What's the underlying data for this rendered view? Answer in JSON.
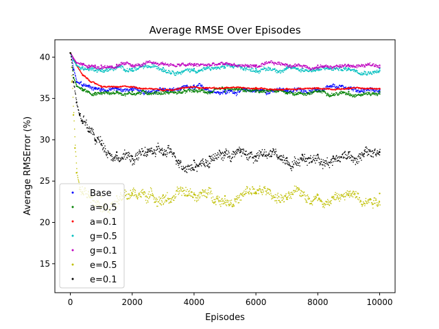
{
  "chart_data": {
    "type": "scatter",
    "title": "Average RMSE Over Episodes",
    "xlabel": "Episodes",
    "ylabel": "Average RMSError (%)",
    "xlim": [
      -500,
      10500
    ],
    "ylim": [
      11.5,
      42.1
    ],
    "xticks": [
      0,
      2000,
      4000,
      6000,
      8000,
      10000
    ],
    "xtick_labels": [
      "0",
      "2000",
      "4000",
      "6000",
      "8000",
      "10000"
    ],
    "yticks": [
      15,
      20,
      25,
      30,
      35,
      40
    ],
    "ytick_labels": [
      "15",
      "20",
      "25",
      "30",
      "35",
      "40"
    ],
    "grid": false,
    "legend_position": "lower-left",
    "series": [
      {
        "name": "Base",
        "color": "#0000ff",
        "marker": "dot",
        "x": [
          0,
          100,
          200,
          400,
          600,
          800,
          1000,
          1500,
          2000,
          3000,
          4000,
          5000,
          6000,
          7000,
          8000,
          9000,
          10000
        ],
        "y": [
          40.5,
          38.5,
          37.0,
          36.5,
          36.4,
          36.3,
          36.2,
          36.2,
          36.0,
          36.0,
          36.1,
          36.0,
          36.0,
          36.0,
          36.1,
          36.1,
          36.0
        ]
      },
      {
        "name": "a=0.5",
        "color": "#008000",
        "marker": "dot",
        "x": [
          0,
          100,
          200,
          400,
          600,
          800,
          1000,
          1500,
          2000,
          3000,
          4000,
          5000,
          6000,
          7000,
          8000,
          9000,
          10000
        ],
        "y": [
          40.5,
          37.5,
          36.5,
          36.0,
          35.8,
          35.7,
          35.7,
          35.8,
          35.8,
          35.9,
          35.8,
          35.8,
          35.8,
          35.7,
          35.8,
          35.8,
          35.8
        ]
      },
      {
        "name": "a=0.1",
        "color": "#ff0000",
        "marker": "dot",
        "x": [
          0,
          100,
          200,
          400,
          600,
          800,
          1000,
          1500,
          2000,
          3000,
          4000,
          5000,
          6000,
          7000,
          8000,
          9000,
          10000
        ],
        "y": [
          40.5,
          39.8,
          39.0,
          37.8,
          37.2,
          36.8,
          36.5,
          36.4,
          36.4,
          36.2,
          36.4,
          36.3,
          36.3,
          36.2,
          36.2,
          36.3,
          36.2
        ]
      },
      {
        "name": "g=0.5",
        "color": "#00bfbf",
        "marker": "dot",
        "x": [
          0,
          100,
          200,
          400,
          600,
          800,
          1000,
          1500,
          2000,
          3000,
          4000,
          5000,
          6000,
          7000,
          8000,
          9000,
          10000
        ],
        "y": [
          40.5,
          39.6,
          39.0,
          38.8,
          38.7,
          38.7,
          38.6,
          38.7,
          38.6,
          38.7,
          38.6,
          38.7,
          38.6,
          38.7,
          38.6,
          38.6,
          38.6
        ]
      },
      {
        "name": "g=0.1",
        "color": "#bf00bf",
        "marker": "dot",
        "x": [
          0,
          100,
          200,
          400,
          600,
          800,
          1000,
          1500,
          2000,
          3000,
          4000,
          5000,
          6000,
          7000,
          8000,
          9000,
          10000
        ],
        "y": [
          40.5,
          39.8,
          39.3,
          39.1,
          39.0,
          39.0,
          39.0,
          39.1,
          39.0,
          39.2,
          39.0,
          39.1,
          39.0,
          39.1,
          39.0,
          39.0,
          39.0
        ]
      },
      {
        "name": "e=0.5",
        "color": "#bfbf00",
        "marker": "dot",
        "x": [
          0,
          50,
          100,
          150,
          200,
          300,
          400,
          600,
          800,
          1000,
          1500,
          2000,
          3000,
          4000,
          5000,
          6000,
          7000,
          8000,
          9000,
          10000
        ],
        "y": [
          40.5,
          37.0,
          33.0,
          29.0,
          26.0,
          24.0,
          23.5,
          23.2,
          23.3,
          23.1,
          23.2,
          23.5,
          23.3,
          23.4,
          23.2,
          23.6,
          23.0,
          23.3,
          23.3,
          23.5
        ]
      },
      {
        "name": "e=0.1",
        "color": "#000000",
        "marker": "dot",
        "x": [
          0,
          100,
          200,
          300,
          400,
          600,
          800,
          1000,
          1500,
          2000,
          2500,
          3000,
          3500,
          4000,
          4500,
          5000,
          5500,
          6000,
          6500,
          7000,
          7500,
          8000,
          8500,
          9000,
          9500,
          10000
        ],
        "y": [
          40.5,
          37.0,
          34.5,
          33.0,
          32.0,
          31.0,
          30.0,
          29.5,
          28.5,
          28.0,
          28.5,
          28.2,
          27.5,
          27.5,
          28.0,
          28.5,
          28.5,
          28.0,
          28.0,
          27.8,
          28.2,
          28.2,
          28.0,
          28.5,
          28.3,
          28.5
        ]
      }
    ]
  }
}
